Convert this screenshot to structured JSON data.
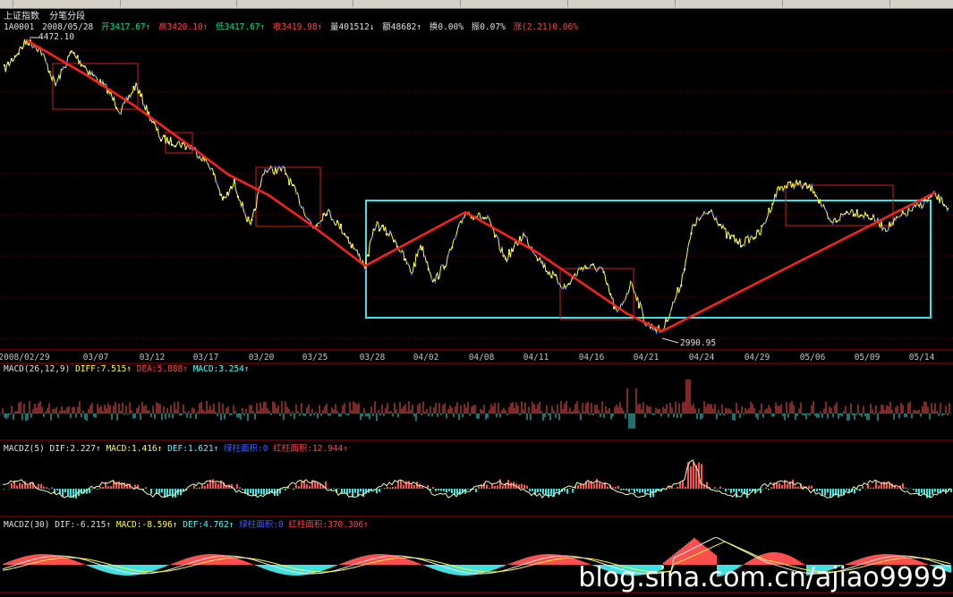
{
  "header": {
    "index_name": "上证指数",
    "period": "分笔分段"
  },
  "quote": {
    "code": "1A0001",
    "date": "2008/05/28",
    "open": "开3417.67↑",
    "high": "高3420.10↑",
    "low": "低3417.67↑",
    "close": "收3419.98↑",
    "volume": "量401512↓",
    "amount": "额48682↑",
    "turnover": "换0.00%",
    "amplitude": "振0.07%",
    "change": "涨(2.21)0.06%"
  },
  "price_chart": {
    "high_label": "4472.10",
    "low_label": "2990.95"
  },
  "dates": [
    "2008/02/29",
    "03/07",
    "03/12",
    "03/17",
    "03/20",
    "03/25",
    "03/28",
    "04/02",
    "04/08",
    "04/11",
    "04/16",
    "04/21",
    "04/24",
    "04/29",
    "05/06",
    "05/09",
    "05/14"
  ],
  "indicators": {
    "macd1": {
      "name": "MACD(26,12,9)",
      "diff": "DIFF:7.515↑",
      "dea": "DEA:5.888↑",
      "macd": "MACD:3.254↑"
    },
    "macd2": {
      "name": "MACDZ(5)",
      "dif": "DIF:2.227↑",
      "macd": "MACD:1.416↑",
      "def": "DEF:1.621↑",
      "green_area": "绿柱面积:0",
      "red_area": "红柱面积:12.944↑"
    },
    "macd3": {
      "name": "MACDZ(30)",
      "dif": "DIF:-6.215↑",
      "macd": "MACD:-8.596↑",
      "def": "DEF:4.762↑",
      "green_area": "绿柱面积:0",
      "red_area": "红柱面积:370.306↑"
    }
  },
  "watermark": "blog.sina.com.cn/ajiao9999",
  "colors": {
    "background": "#000000",
    "price_line": "#ffff40",
    "price_dots": "#3060ff",
    "trend_line": "#ff2020",
    "box_red": "#e02020",
    "consolidation_box": "#40e0e0",
    "panel_divider": "#a00000",
    "hist_red": "#ff5050",
    "hist_cyan": "#40e0e0"
  }
}
